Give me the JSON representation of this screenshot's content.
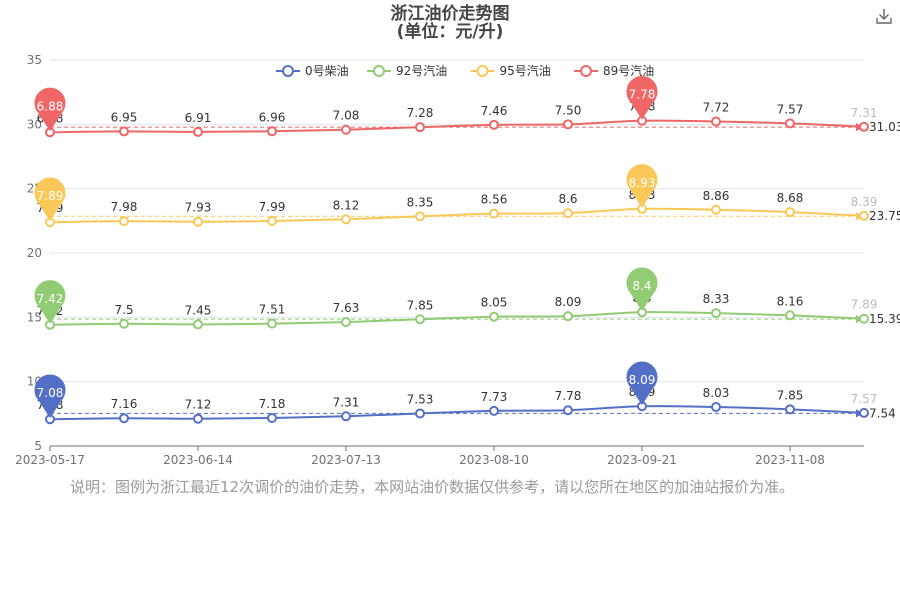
{
  "title": "浙江油价走势图",
  "subtitle": "(单位：元/升)",
  "toolbar": {
    "download_icon": "download-icon"
  },
  "note": "说明：图例为浙江最近12次调价的油价走势，本网站油价数据仅供参考，请以您所在地区的加油站报价为准。",
  "chart_data": {
    "type": "line",
    "x_tick_labels": [
      "2023-05-17",
      "2023-06-14",
      "2023-07-13",
      "2023-08-10",
      "2023-09-21",
      "2023-11-08"
    ],
    "y_ticks": [
      5,
      10,
      15,
      20,
      25,
      30,
      35
    ],
    "ylim": [
      5,
      35
    ],
    "grid": true,
    "legend_position": "top",
    "series": [
      {
        "name": "0号柴油",
        "color": "#5470c6",
        "offset": 0,
        "values": [
          7.08,
          7.16,
          7.12,
          7.18,
          7.31,
          7.53,
          7.73,
          7.78,
          8.09,
          8.03,
          7.85,
          7.57
        ],
        "labels": [
          "7.08",
          "7.16",
          "7.12",
          "7.18",
          "7.31",
          "7.53",
          "7.73",
          "7.78",
          "8.09",
          "8.03",
          "7.85",
          "7.57"
        ],
        "max_pin": "8.09",
        "min_pin": "7.08",
        "avg_line": "7.54"
      },
      {
        "name": "92号汽油",
        "color": "#91cc75",
        "offset": 7,
        "values": [
          7.42,
          7.5,
          7.45,
          7.51,
          7.63,
          7.85,
          8.05,
          8.09,
          8.4,
          8.33,
          8.16,
          7.89
        ],
        "labels": [
          "7.42",
          "7.5",
          "7.45",
          "7.51",
          "7.63",
          "7.85",
          "8.05",
          "8.09",
          "8.4",
          "8.33",
          "8.16",
          "7.89"
        ],
        "max_pin": "8.4",
        "min_pin": "7.42",
        "avg_line": "15.39"
      },
      {
        "name": "95号汽油",
        "color": "#fac858",
        "offset": 14.5,
        "values": [
          7.89,
          7.98,
          7.93,
          7.99,
          8.12,
          8.35,
          8.56,
          8.6,
          8.93,
          8.86,
          8.68,
          8.39
        ],
        "labels": [
          "7.89",
          "7.98",
          "7.93",
          "7.99",
          "8.12",
          "8.35",
          "8.56",
          "8.6",
          "8.93",
          "8.86",
          "8.68",
          "8.39"
        ],
        "max_pin": "8.93",
        "min_pin": "7.89",
        "avg_line": "23.75"
      },
      {
        "name": "89号汽油",
        "color": "#ee6666",
        "offset": 22.5,
        "values": [
          6.88,
          6.95,
          6.91,
          6.96,
          7.08,
          7.28,
          7.46,
          7.5,
          7.78,
          7.72,
          7.57,
          7.31
        ],
        "labels": [
          "6.88",
          "6.95",
          "6.91",
          "6.96",
          "7.08",
          "7.28",
          "7.46",
          "7.50",
          "7.78",
          "7.72",
          "7.57",
          "7.31"
        ],
        "max_pin": "7.78",
        "min_pin": "6.88",
        "avg_line": "31.03"
      }
    ]
  }
}
